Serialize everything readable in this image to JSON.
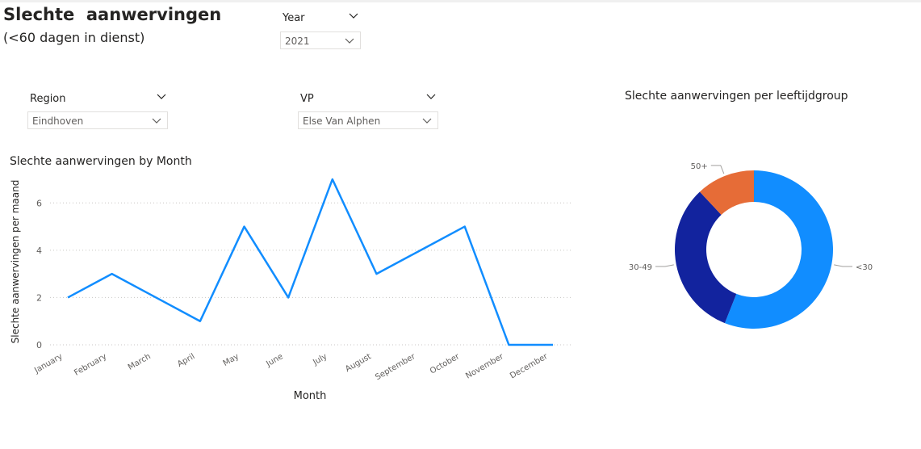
{
  "page": {
    "title": "Slechte  aanwervingen",
    "subtitle": "(<60 dagen in dienst)"
  },
  "slicers": {
    "year": {
      "label": "Year",
      "value": "2021"
    },
    "region": {
      "label": "Region",
      "value": "Eindhoven"
    },
    "vp": {
      "label": "VP",
      "value": "Else Van Alphen"
    }
  },
  "colors": {
    "line": "#118DFF",
    "under30": "#118DFF",
    "age30to49": "#12239E",
    "age50plus": "#E66C37",
    "gridline": "#c8c6c4",
    "axis_text": "#605e5c"
  },
  "chart_data": [
    {
      "type": "line",
      "title": "Slechte aanwervingen by Month",
      "xlabel": "Month",
      "ylabel": "Slechte aanwervingen per maand",
      "categories": [
        "January",
        "February",
        "March",
        "April",
        "May",
        "June",
        "July",
        "August",
        "September",
        "October",
        "November",
        "December"
      ],
      "values": [
        2,
        3,
        2,
        1,
        5,
        2,
        7,
        3,
        4,
        5,
        0,
        0
      ],
      "ylim": [
        0,
        7
      ],
      "yticks": [
        0,
        2,
        4,
        6
      ],
      "grid": true
    },
    {
      "type": "pie",
      "title": "Slechte aanwervingen per leeftijdgroup",
      "donut": true,
      "slices": [
        {
          "label": "<30",
          "value": 56
        },
        {
          "label": "30-49",
          "value": 32
        },
        {
          "label": "50+",
          "value": 12
        }
      ]
    }
  ]
}
